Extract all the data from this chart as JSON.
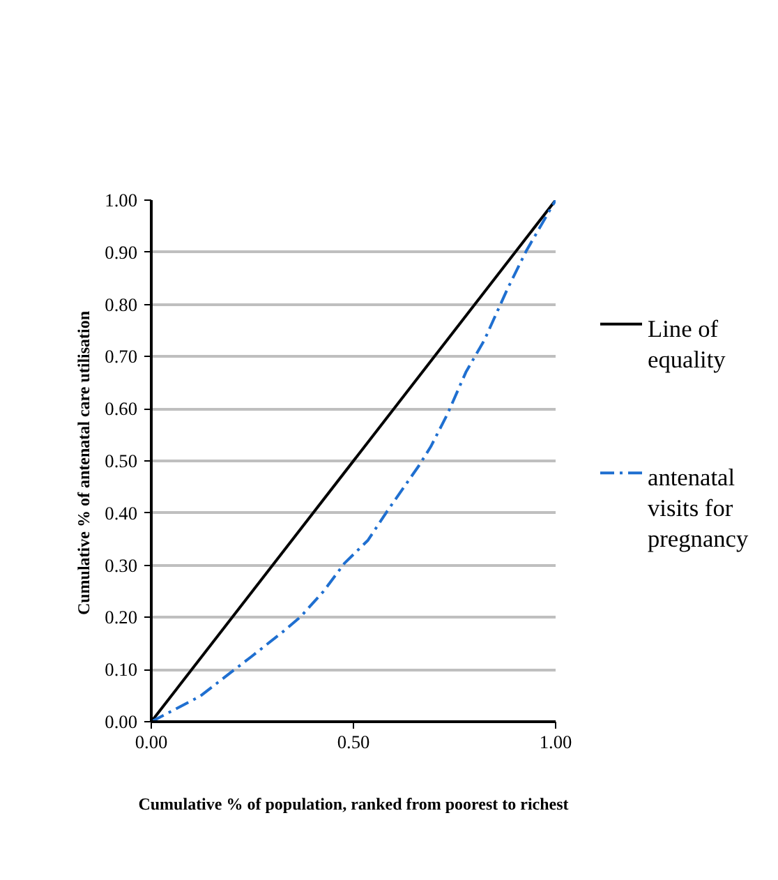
{
  "chart_data": {
    "type": "line",
    "xlabel": "Cumulative % of population, ranked from poorest to richest",
    "ylabel": "Cumulative % of antenatal care  utilisation",
    "xlim": [
      0,
      1
    ],
    "ylim": [
      0,
      1
    ],
    "xticks": [
      {
        "value": 0,
        "label": "0.00"
      },
      {
        "value": 0.5,
        "label": "0.50"
      },
      {
        "value": 1,
        "label": "1.00"
      }
    ],
    "yticks": [
      {
        "value": 0,
        "label": "0.00"
      },
      {
        "value": 0.1,
        "label": "0.10"
      },
      {
        "value": 0.2,
        "label": "0.20"
      },
      {
        "value": 0.3,
        "label": "0.30"
      },
      {
        "value": 0.4,
        "label": "0.40"
      },
      {
        "value": 0.5,
        "label": "0.50"
      },
      {
        "value": 0.6,
        "label": "0.60"
      },
      {
        "value": 0.7,
        "label": "0.70"
      },
      {
        "value": 0.8,
        "label": "0.80"
      },
      {
        "value": 0.9,
        "label": "0.90"
      },
      {
        "value": 1,
        "label": "1.00"
      }
    ],
    "grid": "y",
    "legend": "right",
    "series": [
      {
        "name": "Line of equality",
        "color": "#000000",
        "line_style": "solid",
        "x": [
          0,
          1
        ],
        "values": [
          0,
          1
        ]
      },
      {
        "name": "antenatal visits for pregnancy",
        "color": "#1f6fd0",
        "line_style": "dashdot",
        "x": [
          0,
          0.121,
          0.196,
          0.248,
          0.328,
          0.369,
          0.426,
          0.478,
          0.536,
          0.582,
          0.662,
          0.691,
          0.732,
          0.778,
          0.824,
          0.881,
          0.927,
          1
        ],
        "values": [
          0,
          0.049,
          0.094,
          0.125,
          0.174,
          0.201,
          0.25,
          0.304,
          0.348,
          0.402,
          0.491,
          0.527,
          0.589,
          0.67,
          0.732,
          0.83,
          0.902,
          1
        ]
      }
    ]
  }
}
